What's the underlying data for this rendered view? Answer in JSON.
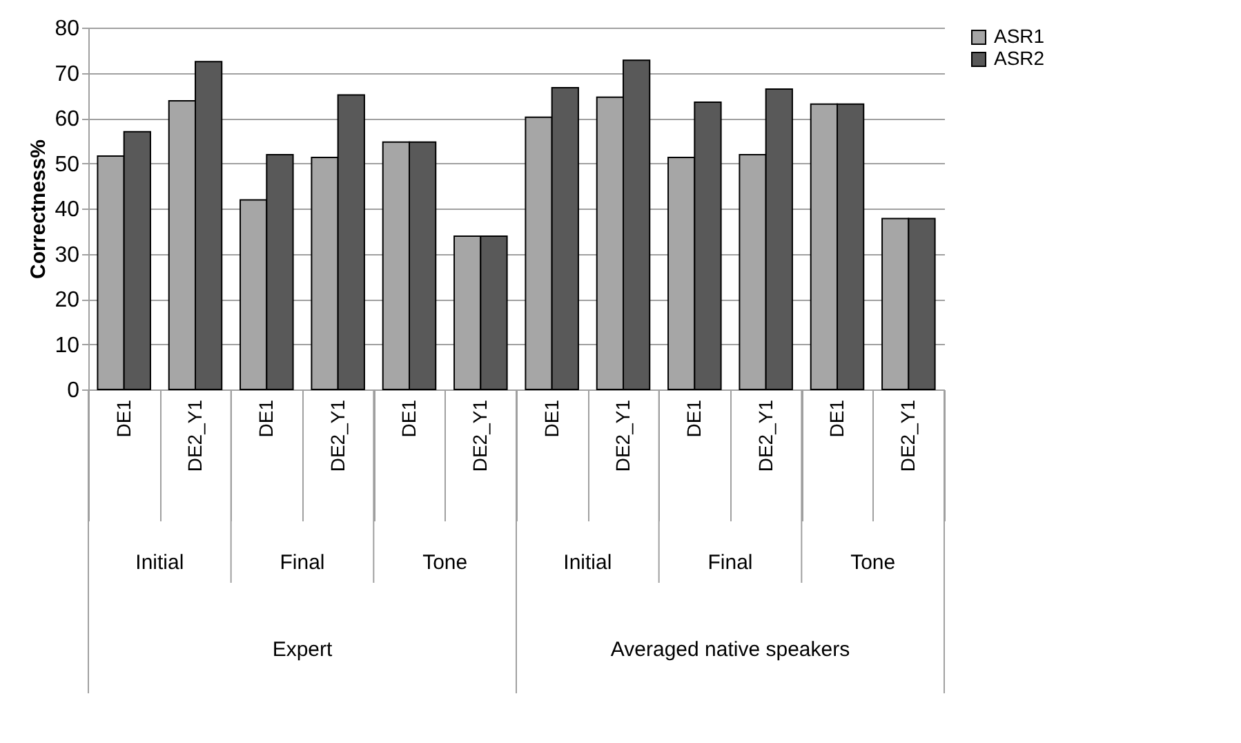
{
  "chart_data": {
    "type": "bar",
    "ylabel": "Correctness%",
    "categories": [
      "DE1",
      "DE2_Y1",
      "DE1",
      "DE2_Y1",
      "DE1",
      "DE2_Y1",
      "DE1",
      "DE2_Y1",
      "DE1",
      "DE2_Y1",
      "DE1",
      "DE2_Y1"
    ],
    "series": [
      {
        "name": "ASR1",
        "color": "#a6a6a6",
        "values": [
          51.6,
          63.8,
          41.9,
          51.3,
          54.7,
          33.9,
          60.2,
          64.6,
          51.3,
          51.9,
          63.1,
          37.8
        ]
      },
      {
        "name": "ASR2",
        "color": "#595959",
        "values": [
          57.0,
          72.5,
          51.9,
          65.1,
          54.7,
          33.9,
          66.7,
          72.8,
          63.5,
          66.4,
          63.1,
          37.8
        ]
      }
    ],
    "annotations": [
      "Initial",
      "Final",
      "Tone",
      "Initial",
      "Final",
      "Tone",
      "Expert",
      "Averaged native speakers"
    ],
    "ylim": [
      0,
      80
    ],
    "yticks": [
      0,
      10,
      20,
      30,
      40,
      50,
      60,
      70,
      80
    ],
    "grid": "y",
    "legend": "right"
  }
}
